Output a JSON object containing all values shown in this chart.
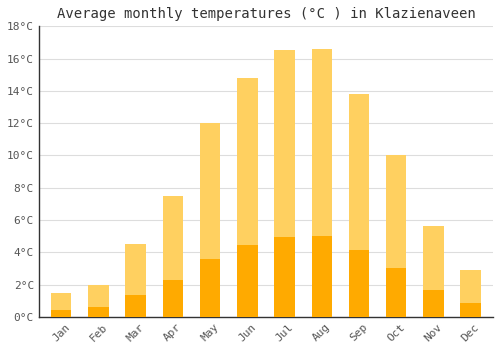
{
  "title": "Average monthly temperatures (°C ) in Klazienaveen",
  "months": [
    "Jan",
    "Feb",
    "Mar",
    "Apr",
    "May",
    "Jun",
    "Jul",
    "Aug",
    "Sep",
    "Oct",
    "Nov",
    "Dec"
  ],
  "values": [
    1.5,
    2.0,
    4.5,
    7.5,
    12.0,
    14.8,
    16.5,
    16.6,
    13.8,
    10.0,
    5.6,
    2.9
  ],
  "bar_color_main": "#FFAA00",
  "bar_color_light": "#FFD060",
  "background_color": "#FFFFFF",
  "ylim": [
    0,
    18
  ],
  "yticks": [
    0,
    2,
    4,
    6,
    8,
    10,
    12,
    14,
    16,
    18
  ],
  "ytick_labels": [
    "0°C",
    "2°C",
    "4°C",
    "6°C",
    "8°C",
    "10°C",
    "12°C",
    "14°C",
    "16°C",
    "18°C"
  ],
  "title_fontsize": 10,
  "tick_fontsize": 8,
  "grid_color": "#DDDDDD",
  "bar_width": 0.55
}
